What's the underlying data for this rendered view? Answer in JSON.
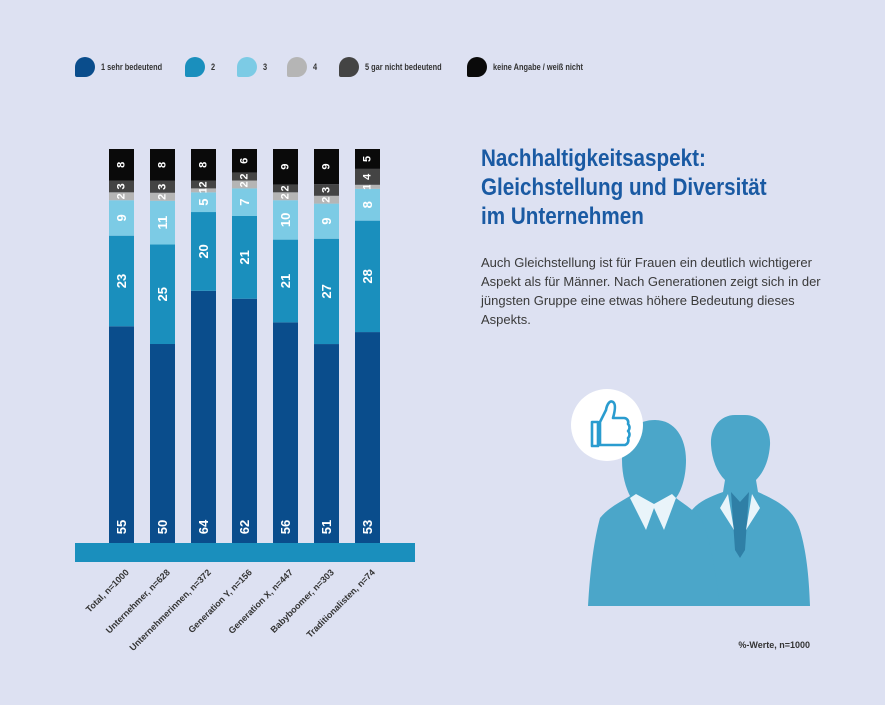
{
  "legend": [
    {
      "label": "1 sehr bedeutend",
      "color": "#0a4d8c"
    },
    {
      "label": "2",
      "color": "#1a8fbd"
    },
    {
      "label": "3",
      "color": "#7ccbe5"
    },
    {
      "label": "4",
      "color": "#b5b5b5"
    },
    {
      "label": "5 gar nicht bedeutend",
      "color": "#444444"
    },
    {
      "label": "keine Angabe / weiß nicht",
      "color": "#0a0a0a"
    }
  ],
  "heading": {
    "line1": "Nachhaltigkeitsaspekt:",
    "line2": "Gleichstellung und Diversität",
    "line3": "im Unternehmen"
  },
  "description": "Auch Gleichstellung ist für Frauen ein deutlich wichtigerer Aspekt als für Männer. Nach Generationen zeigt sich in der jüngsten Gruppe eine etwas höhere Bedeutung dieses Aspekts.",
  "footnote": "%-Werte, n=1000",
  "illustration": {
    "icon": "thumbs-up-icon"
  },
  "chart_data": {
    "type": "bar",
    "stacked": true,
    "orientation": "vertical",
    "unit": "%",
    "categories": [
      "Total, n=1000",
      "Unternehmer, n=628",
      "Unternehmerinnen, n=372",
      "Generation Y, n=156",
      "Generation X, n=447",
      "Babyboomer, n=303",
      "Traditionalisten, n=74"
    ],
    "series": [
      {
        "name": "1 sehr bedeutend",
        "color": "#0a4d8c",
        "values": [
          55,
          50,
          64,
          62,
          56,
          51,
          53
        ]
      },
      {
        "name": "2",
        "color": "#1a8fbd",
        "values": [
          23,
          25,
          20,
          21,
          21,
          27,
          28
        ]
      },
      {
        "name": "3",
        "color": "#7ccbe5",
        "values": [
          9,
          11,
          5,
          7,
          10,
          9,
          8
        ]
      },
      {
        "name": "4",
        "color": "#b5b5b5",
        "values": [
          2,
          2,
          1,
          2,
          2,
          2,
          1
        ]
      },
      {
        "name": "5 gar nicht bedeutend",
        "color": "#444444",
        "values": [
          3,
          3,
          2,
          2,
          2,
          3,
          4
        ]
      },
      {
        "name": "keine Angabe / weiß nicht",
        "color": "#0a0a0a",
        "values": [
          8,
          8,
          8,
          6,
          9,
          9,
          5
        ]
      }
    ],
    "legend_position": "top",
    "grid": false
  }
}
